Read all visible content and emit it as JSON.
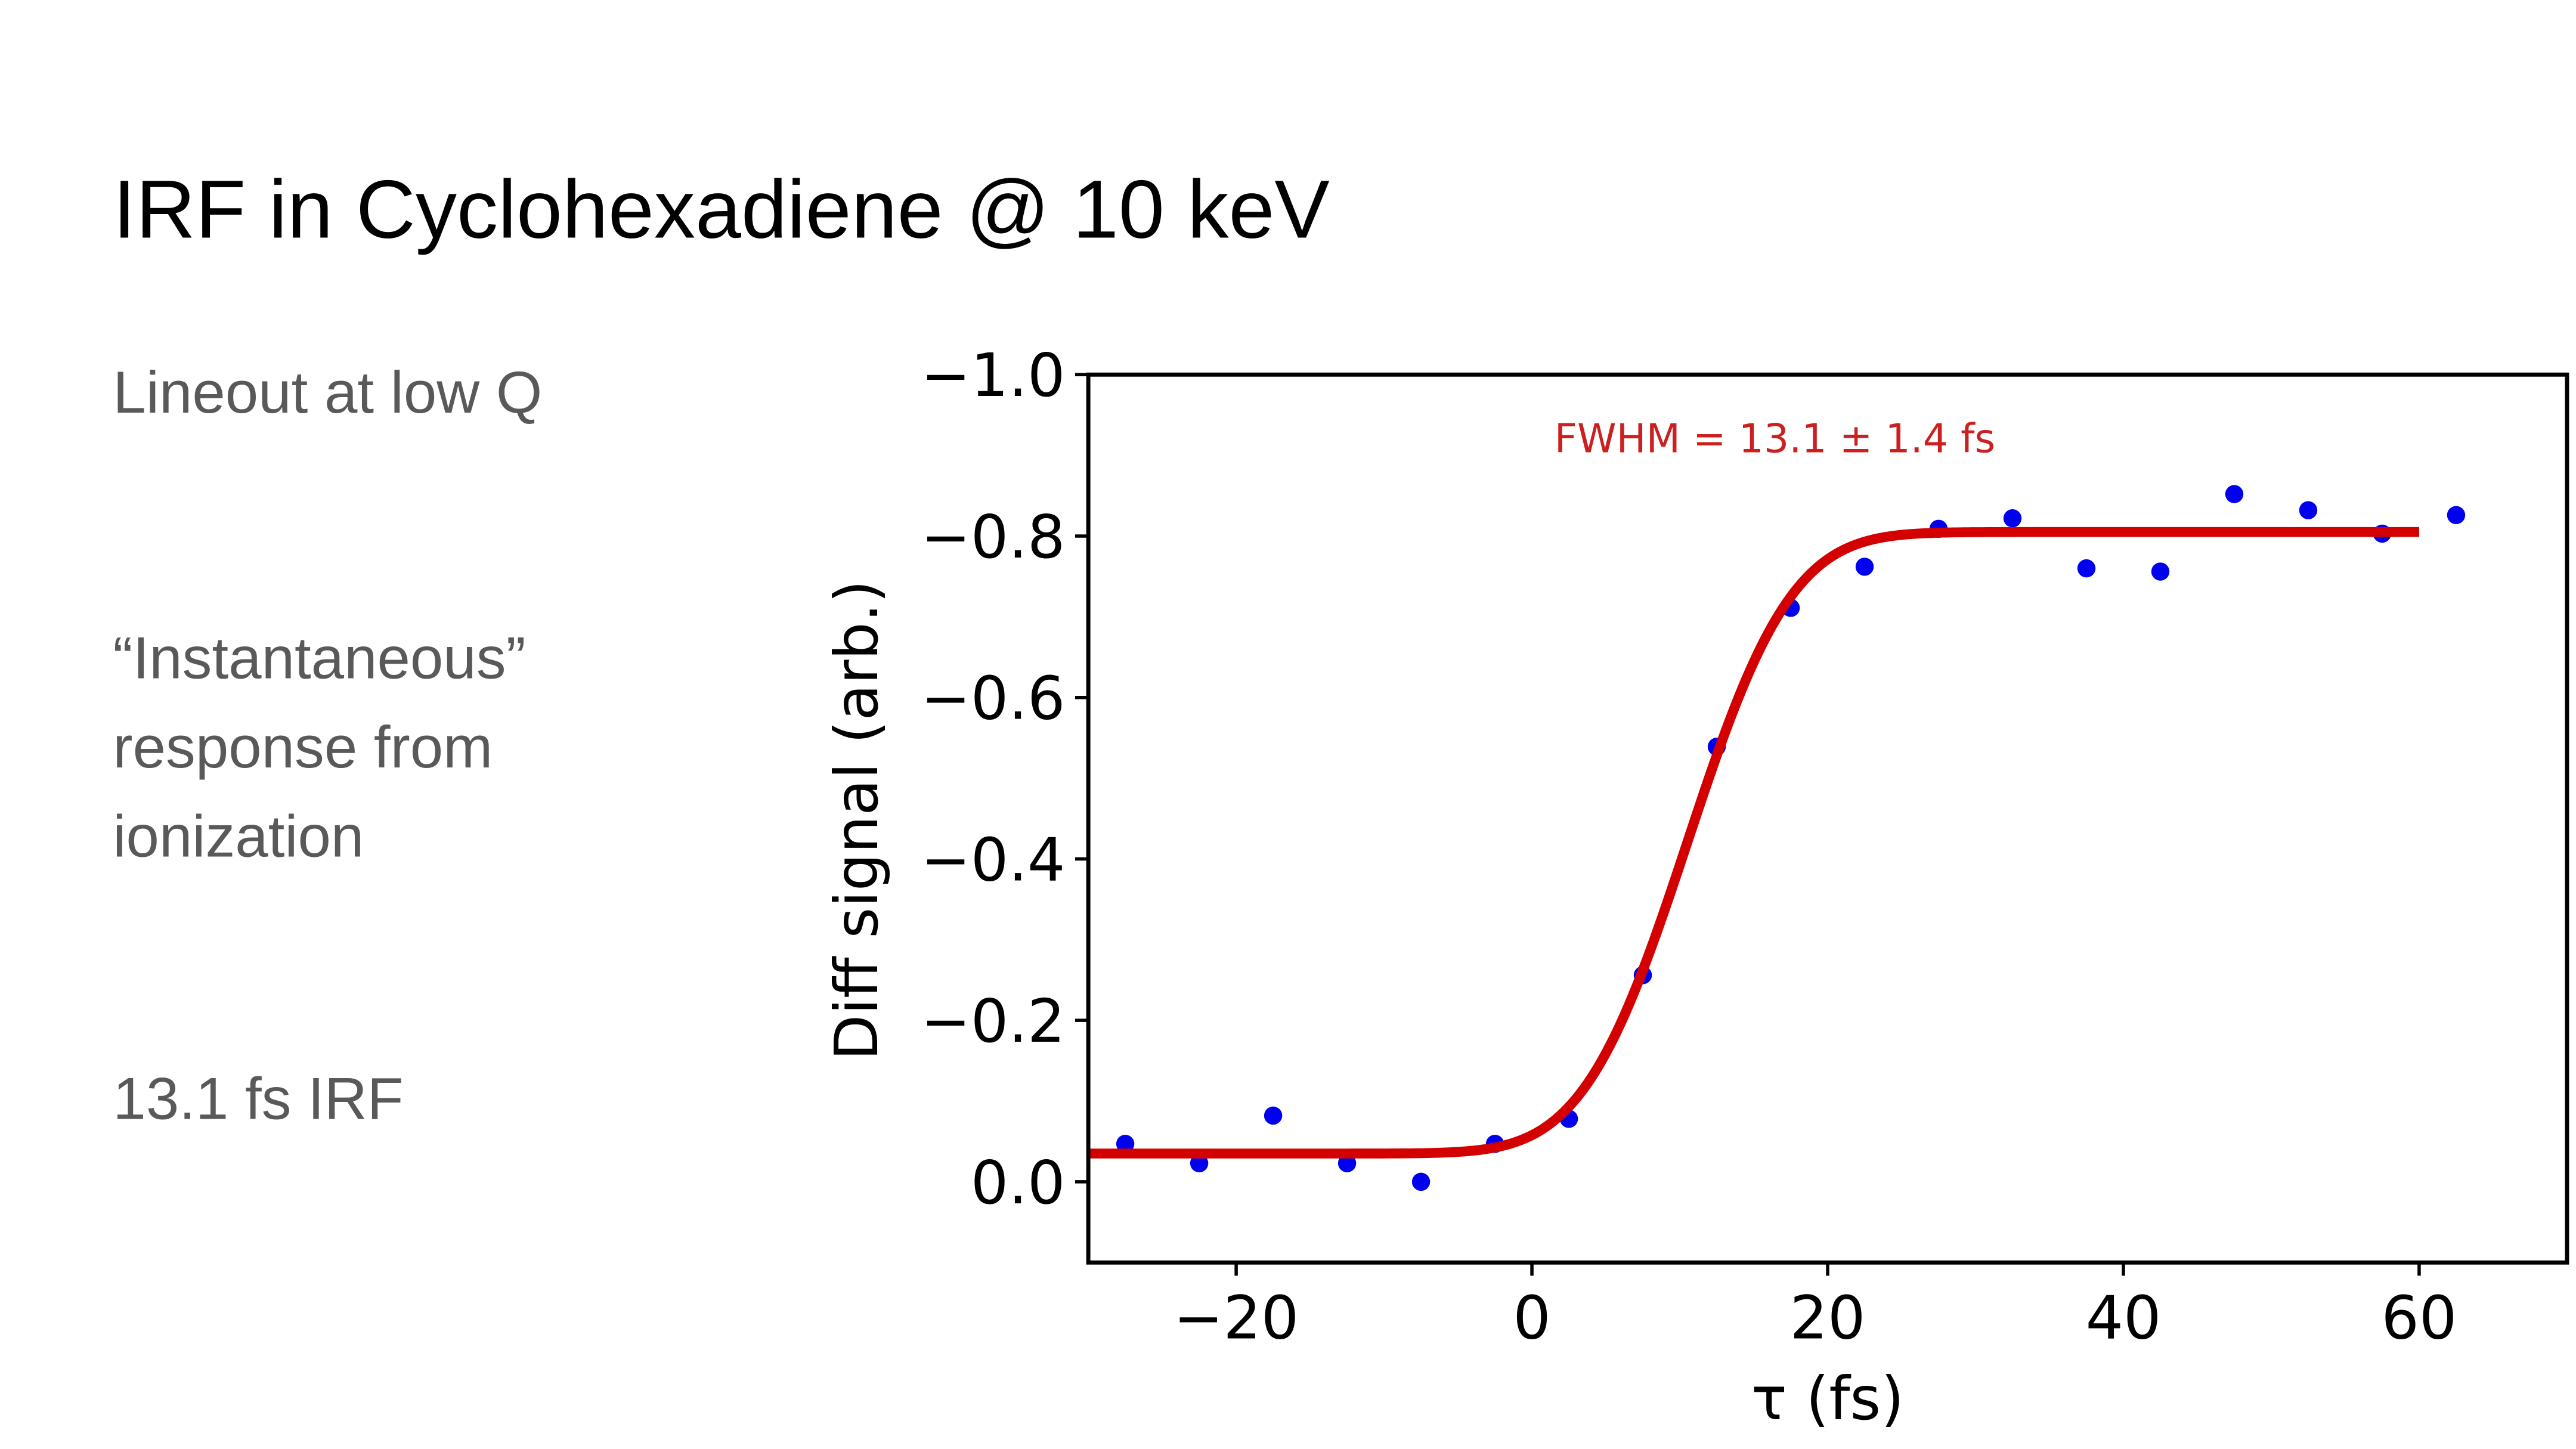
{
  "slide": {
    "title": "IRF in Cyclohexadiene @ 10 keV",
    "bullets": [
      {
        "lines": [
          "Lineout at low Q"
        ]
      },
      {
        "lines": [
          "“Instantaneous”",
          "response from",
          "ionization"
        ]
      },
      {
        "lines": [
          "13.1 fs IRF"
        ]
      }
    ]
  },
  "chart_data": {
    "type": "scatter",
    "title": "",
    "xlabel": "τ (fs)",
    "ylabel": "Diff signal (arb.)",
    "xlim": [
      -30,
      70
    ],
    "ylim": [
      0.1,
      -1.0
    ],
    "y_inverted": true,
    "grid": false,
    "xticks": [
      -20,
      0,
      20,
      40,
      60
    ],
    "xtick_labels": [
      "−20",
      "0",
      "20",
      "40",
      "60"
    ],
    "yticks": [
      -1.0,
      -0.8,
      -0.6,
      -0.4,
      -0.2,
      0.0
    ],
    "ytick_labels": [
      "−1.0",
      "−0.8",
      "−0.6",
      "−0.4",
      "−0.2",
      "0.0"
    ],
    "annotation": {
      "text": "FWHM = 13.1 ± 1.4 fs",
      "color": "#cc1f1f"
    },
    "series": [
      {
        "name": "data",
        "color": "#0000ee",
        "x": [
          -27.5,
          -22.5,
          -17.5,
          -12.5,
          -7.5,
          -2.5,
          2.5,
          7.5,
          12.5,
          17.5,
          22.5,
          27.5,
          32.5,
          37.5,
          42.5,
          47.5,
          52.5,
          57.5,
          62.5
        ],
        "y": [
          -0.047,
          -0.023,
          -0.082,
          -0.023,
          0.0,
          -0.047,
          -0.078,
          -0.256,
          -0.539,
          -0.711,
          -0.762,
          -0.809,
          -0.822,
          -0.76,
          -0.756,
          -0.852,
          -0.832,
          -0.803,
          -0.826
        ]
      },
      {
        "name": "erf fit",
        "color": "#d40000",
        "type": "line",
        "fit": {
          "baseline": -0.035,
          "plateau": -0.805,
          "center": 10.5,
          "fwhm": 13.1,
          "x_range": [
            -30,
            60
          ]
        }
      }
    ]
  }
}
